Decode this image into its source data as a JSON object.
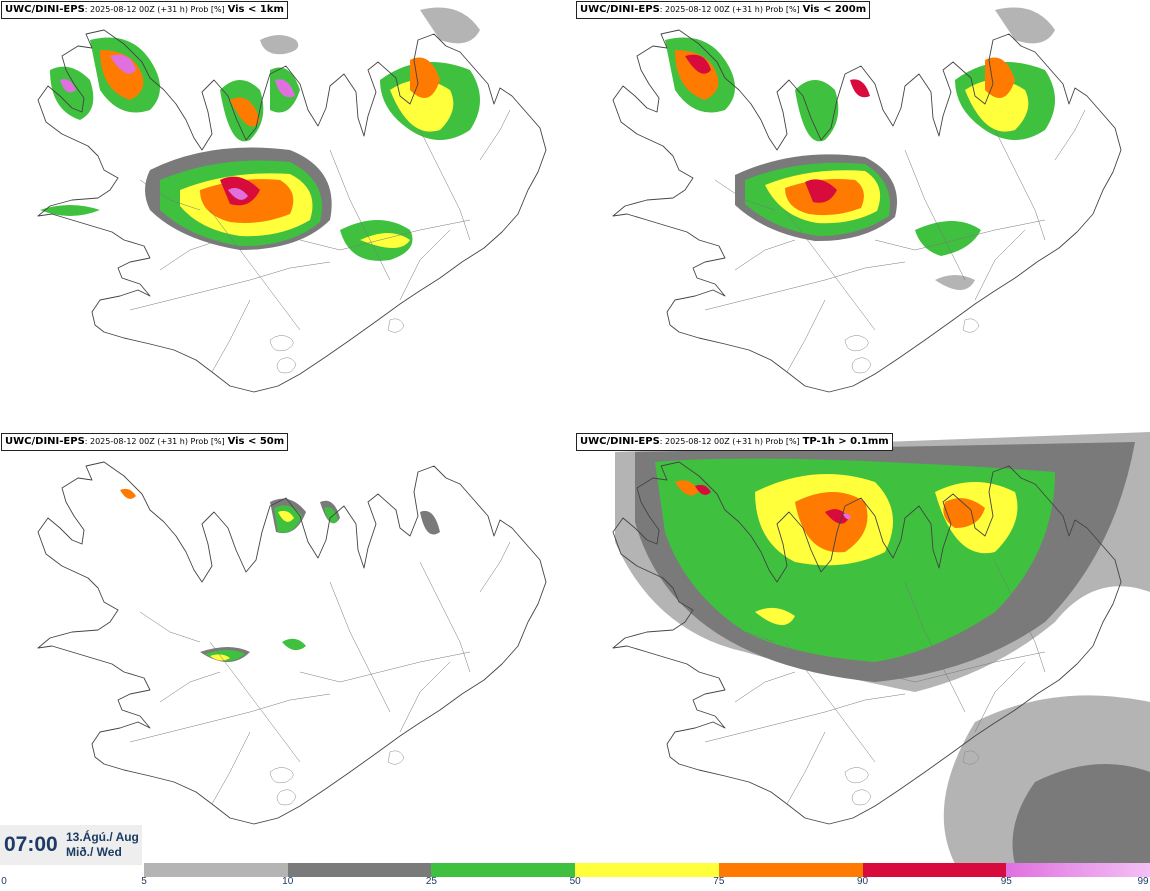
{
  "panels": [
    {
      "id": "tl",
      "source": "UWC/DINI-EPS",
      "meta": ": 2025-08-12 00Z (+31 h) Prob [%]",
      "variable": "Vis < 1km"
    },
    {
      "id": "tr",
      "source": "UWC/DINI-EPS",
      "meta": ": 2025-08-12 00Z (+31 h) Prob [%]",
      "variable": "Vis < 200m"
    },
    {
      "id": "bl",
      "source": "UWC/DINI-EPS",
      "meta": ": 2025-08-12 00Z (+31 h) Prob [%]",
      "variable": "Vis < 50m"
    },
    {
      "id": "br",
      "source": "UWC/DINI-EPS",
      "meta": ": 2025-08-12 00Z (+31 h) Prob [%]",
      "variable": "TP-1h > 0.1mm"
    }
  ],
  "timestamp": {
    "time": "07:00",
    "date_line1": "13.Ágú./ Aug",
    "date_line2": "Mið./ Wed"
  },
  "colorbar": {
    "ticks": [
      "0",
      "5",
      "10",
      "25",
      "50",
      "75",
      "90",
      "95",
      "99"
    ],
    "colors": [
      "#b4b4b4",
      "#7a7a7a",
      "#3fc13f",
      "#ffff3c",
      "#ff7a00",
      "#d80c3c",
      "#e070e0"
    ]
  }
}
